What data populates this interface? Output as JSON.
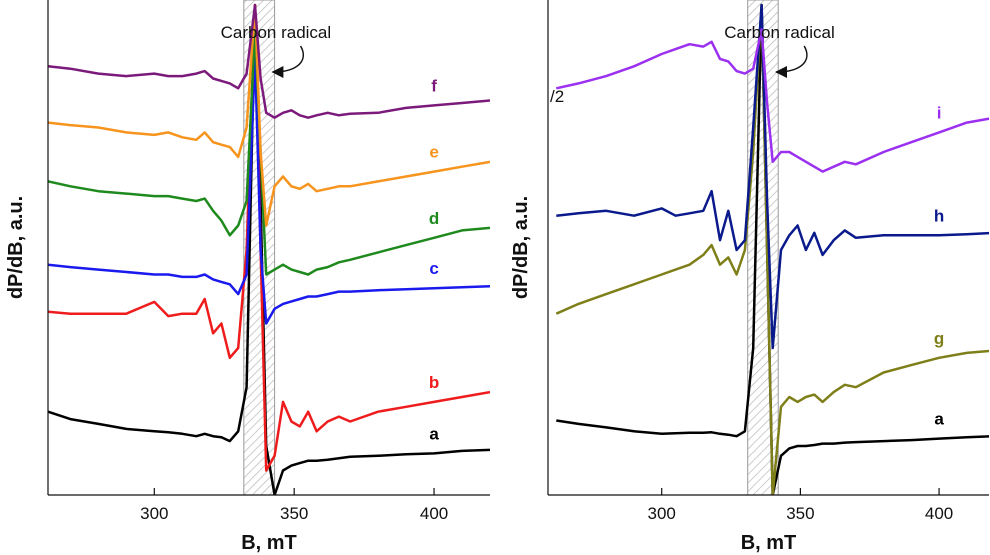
{
  "chart_data": [
    {
      "type": "line",
      "xlabel": "B, mT",
      "ylabel": "dP/dB, a.u.",
      "annotation": "Carbon radical",
      "xlim": [
        262,
        420
      ],
      "ylim": [
        0,
        100
      ],
      "xticks": [
        300,
        350,
        400
      ],
      "band": [
        332,
        343
      ],
      "x": [
        262,
        270,
        280,
        290,
        300,
        305,
        310,
        315,
        318,
        321,
        324,
        327,
        330,
        333,
        336,
        338,
        340,
        343,
        346,
        349,
        352,
        355,
        358,
        362,
        366,
        370,
        380,
        390,
        400,
        410,
        420
      ],
      "series": [
        {
          "name": "a",
          "color": "#000000",
          "values": [
            17,
            15.5,
            14.5,
            13.5,
            13,
            12.8,
            12.5,
            12,
            12.5,
            12,
            11.8,
            11,
            13,
            22,
            100,
            60,
            10,
            0,
            5,
            6,
            6.5,
            7,
            7,
            7.2,
            7.5,
            7.8,
            8,
            8.3,
            8.5,
            9,
            9.2
          ]
        },
        {
          "name": "b",
          "color": "#ee1c1c",
          "values": [
            37.4,
            37,
            37,
            37,
            39.4,
            36.5,
            37,
            37,
            40,
            33,
            35,
            28,
            30,
            50,
            100,
            50,
            5,
            8,
            19,
            15,
            14,
            17,
            13,
            15,
            16,
            15,
            17,
            18,
            19,
            20,
            21
          ]
        },
        {
          "name": "c",
          "color": "#1a1aee",
          "values": [
            47,
            46.5,
            46,
            45.5,
            45,
            45,
            44.5,
            44.5,
            45,
            44,
            43.5,
            43,
            41,
            45,
            90,
            50,
            35,
            38,
            39,
            39.5,
            40,
            40.5,
            40.5,
            41,
            41.5,
            41.5,
            41.8,
            42,
            42.2,
            42.4,
            42.6
          ]
        },
        {
          "name": "d",
          "color": "#1e8a1e",
          "values": [
            64,
            63,
            62,
            61.5,
            61,
            61,
            60.5,
            60,
            60.5,
            58,
            56,
            53,
            55,
            60,
            95,
            70,
            45,
            46,
            47,
            46,
            45.5,
            45,
            46,
            46.5,
            47.5,
            48,
            49.5,
            51,
            52.5,
            54,
            54.5
          ]
        },
        {
          "name": "e",
          "color": "#f7941d",
          "values": [
            76,
            75.5,
            75,
            74,
            73.5,
            74,
            73,
            72.5,
            74,
            72,
            71.5,
            71,
            69,
            75,
            100,
            70,
            55,
            63,
            65,
            63,
            62.5,
            63.5,
            62,
            62.5,
            63,
            63,
            64,
            65,
            66,
            67,
            68
          ]
        },
        {
          "name": "f",
          "color": "#7b1a7b",
          "values": [
            87.5,
            87,
            86,
            85.5,
            86,
            85.5,
            85.5,
            86,
            86.5,
            85,
            84.5,
            84,
            83,
            86,
            100,
            85,
            78,
            77,
            78,
            78.5,
            77.5,
            77,
            77.5,
            78,
            77.5,
            77.8,
            78,
            79,
            79.5,
            80,
            80.5
          ]
        }
      ]
    },
    {
      "type": "line",
      "xlabel": "B, mT",
      "ylabel": "dP/dB, a.u.",
      "annotation": "Carbon radical",
      "note": "/2",
      "xlim": [
        259,
        418
      ],
      "ylim": [
        0,
        100
      ],
      "xticks": [
        300,
        350,
        400
      ],
      "band": [
        331,
        342
      ],
      "x": [
        262,
        270,
        280,
        290,
        300,
        305,
        310,
        315,
        318,
        321,
        324,
        327,
        330,
        333,
        336,
        338,
        340,
        343,
        346,
        349,
        352,
        355,
        358,
        362,
        366,
        370,
        380,
        390,
        400,
        410,
        420
      ],
      "series": [
        {
          "name": "a",
          "color": "#000000",
          "values": [
            15.2,
            14.5,
            13.8,
            13,
            12.5,
            12.6,
            12.7,
            12.7,
            12.8,
            12.5,
            12.3,
            12,
            13,
            30,
            100,
            50,
            0,
            8,
            9.5,
            10,
            10,
            10.2,
            10.5,
            10.5,
            10.7,
            10.8,
            11,
            11.2,
            11.5,
            11.8,
            12
          ]
        },
        {
          "name": "g",
          "color": "#7f7f1a",
          "values": [
            37,
            39,
            41,
            43,
            45,
            46,
            47,
            49,
            51,
            47,
            48.5,
            45,
            50,
            70,
            100,
            50,
            0,
            18,
            20,
            19,
            20,
            20.5,
            19,
            21,
            22.5,
            22,
            25,
            26.5,
            28,
            29,
            29.5
          ]
        },
        {
          "name": "h",
          "color": "#0a1a8c",
          "values": [
            57,
            57.5,
            58,
            57,
            58.5,
            57,
            57.5,
            58,
            62,
            52,
            58,
            50,
            52,
            75,
            100,
            60,
            30,
            50,
            53,
            55,
            50,
            53.5,
            49,
            52,
            54,
            52.5,
            53,
            53,
            53,
            53.2,
            53.5
          ]
        },
        {
          "name": "i",
          "color": "#9b30f0",
          "values": [
            83,
            84,
            85.5,
            87.5,
            90,
            91,
            92,
            91.5,
            92.5,
            89,
            88.5,
            86.5,
            86,
            87,
            95,
            80,
            68,
            70,
            70,
            69,
            68,
            67,
            66,
            67,
            68,
            67.5,
            70,
            72,
            74,
            76,
            77
          ]
        }
      ]
    }
  ]
}
